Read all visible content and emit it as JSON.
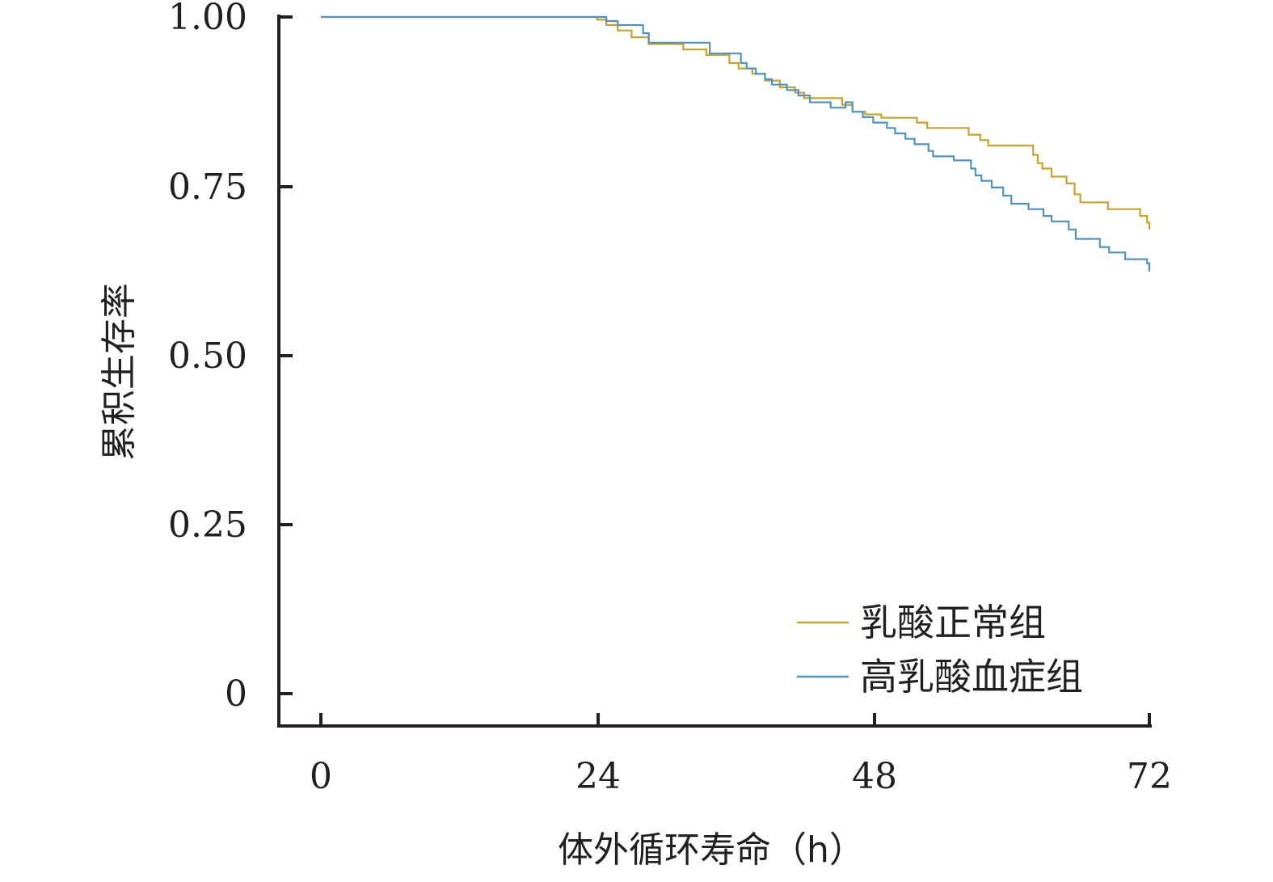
{
  "chart_data": {
    "type": "line",
    "title": "",
    "xlabel": "体外循环寿命（h）",
    "ylabel": "累积生存率",
    "xlim": [
      0,
      72
    ],
    "ylim": [
      0,
      1.0
    ],
    "x_ticks": [
      0,
      24,
      48,
      72
    ],
    "x_tick_labels": [
      "0",
      "24",
      "48",
      "72"
    ],
    "y_ticks": [
      0,
      0.25,
      0.5,
      0.75,
      1.0
    ],
    "y_tick_labels": [
      "0",
      "0.25",
      "0.50",
      "0.75",
      "1.00"
    ],
    "grid": false,
    "legend_position": "bottom-right",
    "series": [
      {
        "name": "乳酸正常组",
        "color": "#c9a227",
        "step": true,
        "points": [
          [
            0,
            1.0
          ],
          [
            24.0,
            0.996
          ],
          [
            24.8,
            0.988
          ],
          [
            25.8,
            0.98
          ],
          [
            27.0,
            0.97
          ],
          [
            28.5,
            0.96
          ],
          [
            31.5,
            0.952
          ],
          [
            33.5,
            0.944
          ],
          [
            35.5,
            0.932
          ],
          [
            36.3,
            0.924
          ],
          [
            37.5,
            0.916
          ],
          [
            38.6,
            0.906
          ],
          [
            39.9,
            0.896
          ],
          [
            41.2,
            0.888
          ],
          [
            42.0,
            0.88
          ],
          [
            45.3,
            0.87
          ],
          [
            46.2,
            0.86
          ],
          [
            47.3,
            0.856
          ],
          [
            48.7,
            0.851
          ],
          [
            51.8,
            0.844
          ],
          [
            52.7,
            0.836
          ],
          [
            56.3,
            0.826
          ],
          [
            57.3,
            0.818
          ],
          [
            58.0,
            0.81
          ],
          [
            61.9,
            0.796
          ],
          [
            62.3,
            0.784
          ],
          [
            62.7,
            0.776
          ],
          [
            63.5,
            0.764
          ],
          [
            64.8,
            0.754
          ],
          [
            65.5,
            0.738
          ],
          [
            66.0,
            0.726
          ],
          [
            68.4,
            0.716
          ],
          [
            71.2,
            0.706
          ],
          [
            71.8,
            0.696
          ],
          [
            72,
            0.686
          ]
        ]
      },
      {
        "name": "高乳酸血症组",
        "color": "#4d94c4",
        "step": true,
        "points": [
          [
            0,
            1.0
          ],
          [
            24.8,
            0.994
          ],
          [
            25.8,
            0.988
          ],
          [
            28.0,
            0.976
          ],
          [
            28.5,
            0.962
          ],
          [
            33.8,
            0.946
          ],
          [
            36.5,
            0.932
          ],
          [
            37.0,
            0.924
          ],
          [
            37.8,
            0.916
          ],
          [
            38.6,
            0.908
          ],
          [
            39.2,
            0.9
          ],
          [
            40.5,
            0.892
          ],
          [
            41.5,
            0.884
          ],
          [
            42.5,
            0.874
          ],
          [
            44.3,
            0.866
          ],
          [
            45.6,
            0.874
          ],
          [
            46.2,
            0.86
          ],
          [
            47.1,
            0.852
          ],
          [
            48.0,
            0.844
          ],
          [
            49.2,
            0.836
          ],
          [
            49.9,
            0.828
          ],
          [
            50.8,
            0.82
          ],
          [
            51.6,
            0.812
          ],
          [
            52.8,
            0.802
          ],
          [
            53.2,
            0.794
          ],
          [
            55.0,
            0.788
          ],
          [
            56.5,
            0.776
          ],
          [
            56.9,
            0.766
          ],
          [
            57.4,
            0.758
          ],
          [
            58.3,
            0.748
          ],
          [
            59.3,
            0.736
          ],
          [
            60.0,
            0.724
          ],
          [
            61.5,
            0.716
          ],
          [
            62.8,
            0.706
          ],
          [
            63.5,
            0.698
          ],
          [
            65.0,
            0.686
          ],
          [
            65.6,
            0.672
          ],
          [
            67.7,
            0.66
          ],
          [
            68.5,
            0.652
          ],
          [
            69.9,
            0.642
          ],
          [
            71.8,
            0.636
          ],
          [
            72,
            0.624
          ]
        ]
      }
    ]
  }
}
